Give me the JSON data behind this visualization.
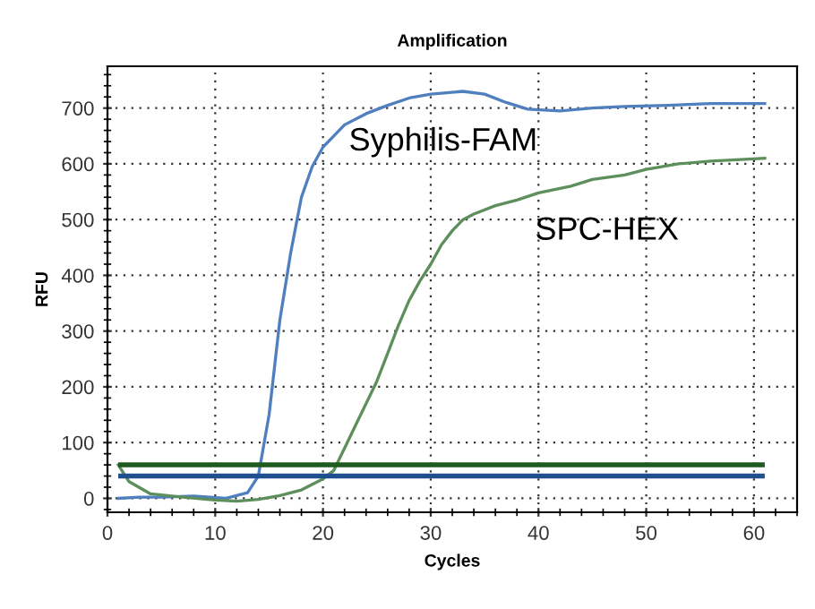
{
  "chart_data": {
    "type": "line",
    "title": "Amplification",
    "xlabel": "Cycles",
    "ylabel": "RFU",
    "xlim": [
      0,
      64
    ],
    "xticks": [
      0,
      10,
      20,
      30,
      40,
      50,
      60
    ],
    "ylim": [
      -25,
      775
    ],
    "yticks": [
      0,
      100,
      200,
      300,
      400,
      500,
      600,
      700
    ],
    "grid": true,
    "line_style": "solid",
    "marker": "none",
    "series": [
      {
        "name": "Syphilis-FAM",
        "color": "#4f7fbf",
        "x": [
          1,
          3,
          5,
          8,
          11,
          13,
          14,
          15,
          16,
          17,
          18,
          19,
          20,
          21,
          22,
          24,
          26,
          28,
          30,
          33,
          35,
          37,
          39,
          42,
          45,
          48,
          52,
          56,
          61
        ],
        "values": [
          0,
          2,
          2,
          4,
          0,
          10,
          40,
          150,
          320,
          440,
          540,
          595,
          630,
          650,
          670,
          690,
          705,
          718,
          725,
          730,
          725,
          710,
          698,
          695,
          700,
          703,
          705,
          708,
          708
        ]
      },
      {
        "name": "SPC-HEX",
        "color": "#5d8f5d",
        "x": [
          1,
          2,
          4,
          7,
          10,
          12,
          14,
          16,
          18,
          20,
          21,
          22,
          23,
          24,
          25,
          26,
          27,
          28,
          29,
          30,
          31,
          32,
          33,
          34,
          36,
          38,
          40,
          43,
          45,
          48,
          50,
          53,
          56,
          61
        ],
        "values": [
          60,
          30,
          8,
          2,
          -3,
          -5,
          -2,
          5,
          15,
          35,
          50,
          90,
          130,
          170,
          210,
          260,
          310,
          355,
          390,
          420,
          455,
          480,
          500,
          510,
          525,
          535,
          548,
          560,
          572,
          580,
          590,
          600,
          605,
          610
        ]
      }
    ],
    "ref_lines": [
      {
        "axis": "y",
        "value": 60,
        "color": "#1f5a1f"
      },
      {
        "axis": "y",
        "value": 40,
        "color": "#1f4f8f"
      }
    ]
  }
}
